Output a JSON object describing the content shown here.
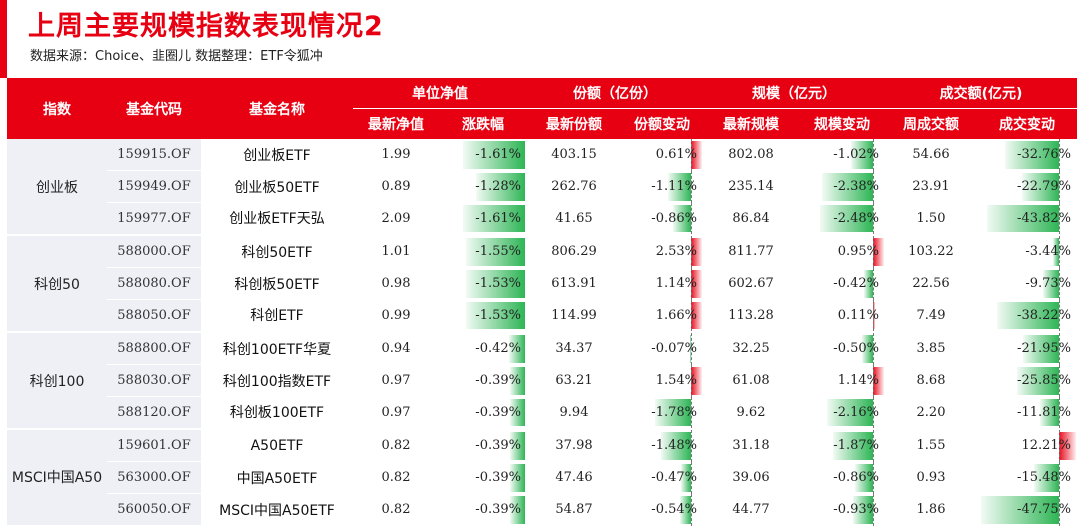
{
  "header": {
    "title": "上周主要规模指数表现情况2",
    "subtitle": "数据来源：Choice、韭圈儿   数据整理：ETF令狐冲"
  },
  "columns": {
    "index": "指数",
    "code": "基金代码",
    "name": "基金名称",
    "nav_group": "单位净值",
    "share_group": "份额（亿份）",
    "scale_group": "规模（亿元）",
    "turnover_group": "成交额(亿元)",
    "nav": "最新净值",
    "change": "涨跌幅",
    "share": "最新份额",
    "share_chg": "份额变动",
    "scale": "最新规模",
    "scale_chg": "规模变动",
    "turnover": "周成交额",
    "turnover_chg": "成交变动"
  },
  "colors": {
    "accent": "#e60012",
    "positive": "#e60012",
    "negative": "#22b14c",
    "group_bg": "#eef0f6"
  },
  "groups": [
    {
      "index": "创业板",
      "rows": [
        {
          "code": "159915.OF",
          "name": "创业板ETF",
          "nav": "1.99",
          "change": "-1.61%",
          "change_v": -1.61,
          "share": "403.15",
          "share_chg": "0.61%",
          "share_chg_v": 0.61,
          "scale": "802.08",
          "scale_chg": "-1.02%",
          "scale_chg_v": -1.02,
          "turnover": "54.66",
          "turnover_chg": "-32.76%",
          "turnover_chg_v": -32.76
        },
        {
          "code": "159949.OF",
          "name": "创业板50ETF",
          "nav": "0.89",
          "change": "-1.28%",
          "change_v": -1.28,
          "share": "262.76",
          "share_chg": "-1.11%",
          "share_chg_v": -1.11,
          "scale": "235.14",
          "scale_chg": "-2.38%",
          "scale_chg_v": -2.38,
          "turnover": "23.91",
          "turnover_chg": "-22.79%",
          "turnover_chg_v": -22.79
        },
        {
          "code": "159977.OF",
          "name": "创业板ETF天弘",
          "nav": "2.09",
          "change": "-1.61%",
          "change_v": -1.61,
          "share": "41.65",
          "share_chg": "-0.86%",
          "share_chg_v": -0.86,
          "scale": "86.84",
          "scale_chg": "-2.48%",
          "scale_chg_v": -2.48,
          "turnover": "1.50",
          "turnover_chg": "-43.82%",
          "turnover_chg_v": -43.82
        }
      ]
    },
    {
      "index": "科创50",
      "rows": [
        {
          "code": "588000.OF",
          "name": "科创50ETF",
          "nav": "1.01",
          "change": "-1.55%",
          "change_v": -1.55,
          "share": "806.29",
          "share_chg": "2.53%",
          "share_chg_v": 2.53,
          "scale": "811.77",
          "scale_chg": "0.95%",
          "scale_chg_v": 0.95,
          "turnover": "103.22",
          "turnover_chg": "-3.44%",
          "turnover_chg_v": -3.44
        },
        {
          "code": "588080.OF",
          "name": "科创板50ETF",
          "nav": "0.98",
          "change": "-1.53%",
          "change_v": -1.53,
          "share": "613.91",
          "share_chg": "1.14%",
          "share_chg_v": 1.14,
          "scale": "602.67",
          "scale_chg": "-0.42%",
          "scale_chg_v": -0.42,
          "turnover": "22.56",
          "turnover_chg": "-9.73%",
          "turnover_chg_v": -9.73
        },
        {
          "code": "588050.OF",
          "name": "科创ETF",
          "nav": "0.99",
          "change": "-1.53%",
          "change_v": -1.53,
          "share": "114.99",
          "share_chg": "1.66%",
          "share_chg_v": 1.66,
          "scale": "113.28",
          "scale_chg": "0.11%",
          "scale_chg_v": 0.11,
          "turnover": "7.49",
          "turnover_chg": "-38.22%",
          "turnover_chg_v": -38.22
        }
      ]
    },
    {
      "index": "科创100",
      "rows": [
        {
          "code": "588800.OF",
          "name": "科创100ETF华夏",
          "nav": "0.94",
          "change": "-0.42%",
          "change_v": -0.42,
          "share": "34.37",
          "share_chg": "-0.07%",
          "share_chg_v": -0.07,
          "scale": "32.25",
          "scale_chg": "-0.50%",
          "scale_chg_v": -0.5,
          "turnover": "3.85",
          "turnover_chg": "-21.95%",
          "turnover_chg_v": -21.95
        },
        {
          "code": "588030.OF",
          "name": "科创100指数ETF",
          "nav": "0.97",
          "change": "-0.39%",
          "change_v": -0.39,
          "share": "63.21",
          "share_chg": "1.54%",
          "share_chg_v": 1.54,
          "scale": "61.08",
          "scale_chg": "1.14%",
          "scale_chg_v": 1.14,
          "turnover": "8.68",
          "turnover_chg": "-25.85%",
          "turnover_chg_v": -25.85
        },
        {
          "code": "588120.OF",
          "name": "科创板100ETF",
          "nav": "0.97",
          "change": "-0.39%",
          "change_v": -0.39,
          "share": "9.94",
          "share_chg": "-1.78%",
          "share_chg_v": -1.78,
          "scale": "9.62",
          "scale_chg": "-2.16%",
          "scale_chg_v": -2.16,
          "turnover": "2.20",
          "turnover_chg": "-11.81%",
          "turnover_chg_v": -11.81
        }
      ]
    },
    {
      "index": "MSCI中国A50",
      "rows": [
        {
          "code": "159601.OF",
          "name": "A50ETF",
          "nav": "0.82",
          "change": "-0.39%",
          "change_v": -0.39,
          "share": "37.98",
          "share_chg": "-1.48%",
          "share_chg_v": -1.48,
          "scale": "31.18",
          "scale_chg": "-1.87%",
          "scale_chg_v": -1.87,
          "turnover": "1.55",
          "turnover_chg": "12.21%",
          "turnover_chg_v": 12.21
        },
        {
          "code": "563000.OF",
          "name": "中国A50ETF",
          "nav": "0.82",
          "change": "-0.39%",
          "change_v": -0.39,
          "share": "47.46",
          "share_chg": "-0.47%",
          "share_chg_v": -0.47,
          "scale": "39.06",
          "scale_chg": "-0.86%",
          "scale_chg_v": -0.86,
          "turnover": "0.93",
          "turnover_chg": "-15.48%",
          "turnover_chg_v": -15.48
        },
        {
          "code": "560050.OF",
          "name": "MSCI中国A50ETF",
          "nav": "0.82",
          "change": "-0.39%",
          "change_v": -0.39,
          "share": "54.87",
          "share_chg": "-0.54%",
          "share_chg_v": -0.54,
          "scale": "44.77",
          "scale_chg": "-0.93%",
          "scale_chg_v": -0.93,
          "turnover": "1.86",
          "turnover_chg": "-47.75%",
          "turnover_chg_v": -47.75
        }
      ]
    }
  ]
}
